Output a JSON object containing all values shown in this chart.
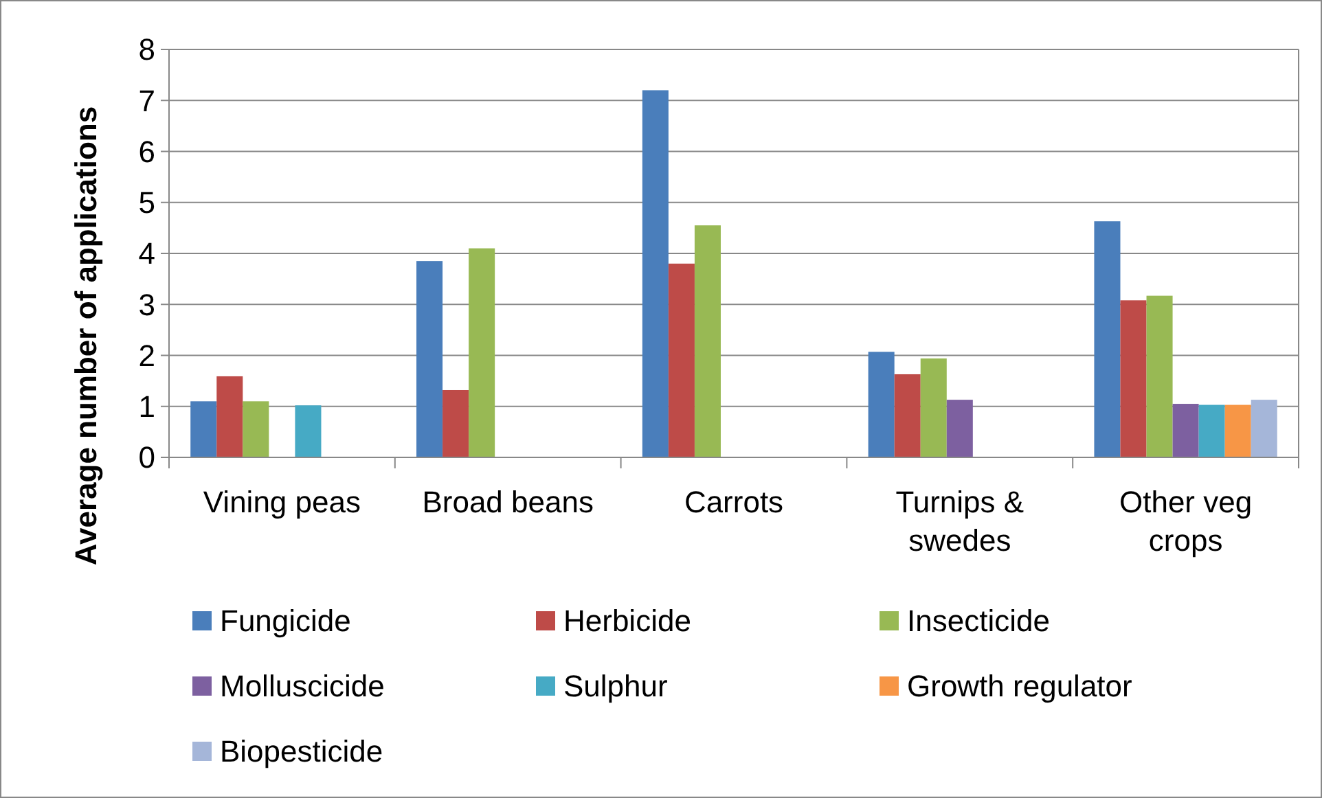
{
  "chart_data": {
    "type": "bar",
    "ylabel": "Average number of applications",
    "categories": [
      "Vining peas",
      "Broad beans",
      "Carrots",
      "Turnips & swedes",
      "Other veg crops"
    ],
    "series": [
      {
        "name": "Fungicide",
        "color": "#4a7ebb",
        "values": [
          1.1,
          3.85,
          7.2,
          2.07,
          4.63
        ]
      },
      {
        "name": "Herbicide",
        "color": "#be4b48",
        "values": [
          1.59,
          1.32,
          3.8,
          1.63,
          3.08
        ]
      },
      {
        "name": "Insecticide",
        "color": "#98b954",
        "values": [
          1.1,
          4.1,
          4.55,
          1.94,
          3.17
        ]
      },
      {
        "name": "Molluscicide",
        "color": "#7d60a0",
        "values": [
          null,
          null,
          null,
          1.13,
          1.05
        ]
      },
      {
        "name": "Sulphur",
        "color": "#46aac5",
        "values": [
          1.02,
          null,
          null,
          null,
          1.03
        ]
      },
      {
        "name": "Growth regulator",
        "color": "#f79646",
        "values": [
          null,
          null,
          null,
          null,
          1.03
        ]
      },
      {
        "name": "Biopesticide",
        "color": "#a5b6d9",
        "values": [
          null,
          null,
          null,
          null,
          1.13
        ]
      }
    ],
    "ylim": [
      0,
      8
    ],
    "yticks": [
      0,
      1,
      2,
      3,
      4,
      5,
      6,
      7,
      8
    ],
    "grid": "y",
    "legend": "bottom"
  }
}
